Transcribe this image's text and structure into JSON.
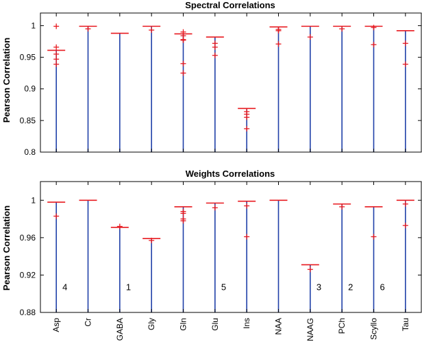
{
  "chart_data": [
    {
      "type": "box",
      "title": "Spectral Correlations",
      "ylabel": "Pearson Correlation",
      "ylim": [
        0.8,
        1.02
      ],
      "yticks": [
        "0.8",
        "0.85",
        "0.9",
        "0.95",
        "1"
      ],
      "categories": [
        "Asp",
        "Cr",
        "GABA",
        "Gly",
        "Gln",
        "Glu",
        "Ins",
        "NAA",
        "NAAG",
        "PCh",
        "Scyllo",
        "Tau"
      ],
      "stem_top": [
        0.961,
        0.999,
        0.988,
        0.999,
        0.987,
        0.982,
        0.869,
        0.998,
        0.999,
        0.999,
        0.999,
        0.992
      ],
      "outliers": [
        [
          0.999,
          0.966,
          0.955,
          0.947,
          0.939
        ],
        [
          0.995
        ],
        [],
        [
          0.993
        ],
        [
          0.99,
          0.984,
          0.978,
          0.977,
          0.94,
          0.925
        ],
        [
          0.972,
          0.966,
          0.953
        ],
        [
          0.864,
          0.86,
          0.855,
          0.837
        ],
        [
          0.994,
          0.992,
          0.971
        ],
        [
          0.982
        ],
        [
          0.995
        ],
        [
          0.997,
          0.97
        ],
        [
          0.972,
          0.939
        ]
      ],
      "annotations": [],
      "grid": false
    },
    {
      "type": "box",
      "title": "Weights Correlations",
      "ylabel": "Pearson Correlation",
      "ylim": [
        0.88,
        1.02
      ],
      "yticks": [
        "0.88",
        "0.92",
        "0.96",
        "1"
      ],
      "categories": [
        "Asp",
        "Cr",
        "GABA",
        "Gly",
        "Gln",
        "Glu",
        "Ins",
        "NAA",
        "NAAG",
        "PCh",
        "Scyllo",
        "Tau"
      ],
      "stem_top": [
        0.998,
        1.0,
        0.971,
        0.959,
        0.993,
        0.997,
        0.999,
        1.0,
        0.931,
        0.996,
        0.993,
        1.0
      ],
      "outliers": [
        [
          0.983
        ],
        [],
        [
          0.972
        ],
        [
          0.957
        ],
        [
          0.988,
          0.986,
          0.98,
          0.978
        ],
        [
          0.992
        ],
        [
          0.994,
          0.961
        ],
        [],
        [
          0.926
        ],
        [
          0.993
        ],
        [
          0.961
        ],
        [
          0.996,
          0.973
        ]
      ],
      "annotations": [
        {
          "category": "Asp",
          "text": "4"
        },
        {
          "category": "GABA",
          "text": "1"
        },
        {
          "category": "Glu",
          "text": "5"
        },
        {
          "category": "NAAG",
          "text": "3"
        },
        {
          "category": "PCh",
          "text": "2"
        },
        {
          "category": "Scyllo",
          "text": "6"
        }
      ],
      "grid": false
    }
  ],
  "colors": {
    "stem": "#1f3fa8",
    "box": "#e8191f",
    "axis": "#000000"
  }
}
